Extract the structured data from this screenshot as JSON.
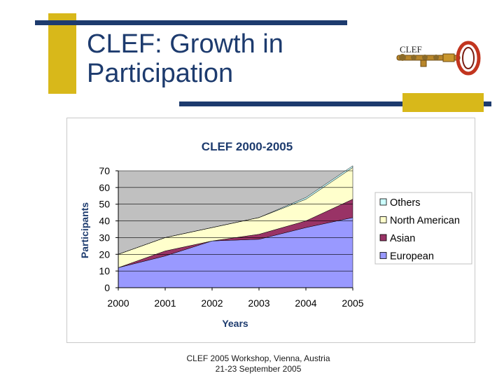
{
  "slide": {
    "title": "CLEF: Growth in Participation",
    "logo_text": "CLEF"
  },
  "footer": {
    "line1": "CLEF 2005 Workshop, Vienna, Austria",
    "line2": "21-23 September 2005"
  },
  "colors": {
    "navy": "#1d3b6e",
    "gold": "#d8b81a",
    "plot_bg": "#c0c0c0",
    "european": "#9999ff",
    "asian": "#993366",
    "north_american": "#ffffcc",
    "others": "#ccffff"
  },
  "chart_data": {
    "type": "area",
    "stacked": true,
    "title": "CLEF 2000-2005",
    "xlabel": "Years",
    "ylabel": "Participants",
    "categories": [
      "2000",
      "2001",
      "2002",
      "2003",
      "2004",
      "2005"
    ],
    "ylim": [
      0,
      70
    ],
    "yticks": [
      0,
      10,
      20,
      30,
      40,
      50,
      60,
      70
    ],
    "grid": true,
    "legend_position": "right",
    "series": [
      {
        "name": "European",
        "color": "#9999ff",
        "values": [
          12,
          19,
          28,
          29,
          36,
          42
        ]
      },
      {
        "name": "Asian",
        "color": "#993366",
        "values": [
          0,
          3,
          0,
          3,
          4,
          11
        ]
      },
      {
        "name": "North American",
        "color": "#ffffcc",
        "values": [
          8,
          8,
          8,
          10,
          13,
          19
        ]
      },
      {
        "name": "Others",
        "color": "#ccffff",
        "values": [
          0,
          0,
          0,
          0,
          1,
          1
        ]
      }
    ],
    "legend_order": [
      "Others",
      "North American",
      "Asian",
      "European"
    ]
  }
}
